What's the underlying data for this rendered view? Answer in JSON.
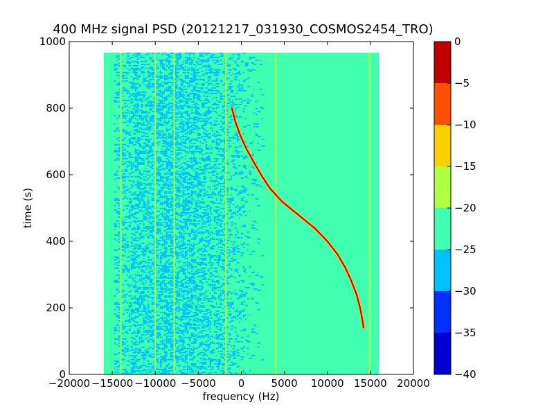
{
  "chart_data": {
    "type": "heatmap",
    "title": "400 MHz signal PSD (20121217_031930_COSMOS2454_TRO)",
    "xlabel": "frequency (Hz)",
    "ylabel": "time (s)",
    "xlim": [
      -20000,
      20000
    ],
    "ylim": [
      0,
      1000
    ],
    "xticks": [
      -20000,
      -15000,
      -10000,
      -5000,
      0,
      5000,
      10000,
      15000,
      20000
    ],
    "xtick_labels": [
      "−20000",
      "−15000",
      "−10000",
      "−5000",
      "0",
      "5000",
      "10000",
      "15000",
      "20000"
    ],
    "yticks": [
      0,
      200,
      400,
      600,
      800,
      1000
    ],
    "ytick_labels": [
      "0",
      "200",
      "400",
      "600",
      "800",
      "1000"
    ],
    "data_extent": {
      "freq_min": -16000,
      "freq_max": 16000,
      "time_min": 0,
      "time_max": 967
    },
    "background_level": -22.5,
    "noisy_band": {
      "freq_min": -12500,
      "freq_max": -3500,
      "level": -27.5
    },
    "colorbar": {
      "levels": [
        -40,
        -35,
        -30,
        -25,
        -20,
        -15,
        -10,
        -5,
        0
      ],
      "tick_labels": [
        "−40",
        "−35",
        "−30",
        "−25",
        "−20",
        "−15",
        "−10",
        "−5",
        "0"
      ],
      "colors": [
        "#0000cd",
        "#0030ff",
        "#00c0ff",
        "#40ffb0",
        "#b0ff40",
        "#ffd000",
        "#ff5000",
        "#c00000"
      ]
    },
    "vertical_lines": [
      {
        "freq": -14000,
        "level": -17.5
      },
      {
        "freq": -10000,
        "level": -17.5
      },
      {
        "freq": -7800,
        "level": -17.5
      },
      {
        "freq": -1800,
        "level": -17.5
      },
      {
        "freq": 4000,
        "level": -17.5
      },
      {
        "freq": 14900,
        "level": -17.5
      }
    ],
    "signal_track": {
      "name": "",
      "level": -2.5,
      "points": [
        {
          "t": 800,
          "f": -1100
        },
        {
          "t": 760,
          "f": -700
        },
        {
          "t": 720,
          "f": -150
        },
        {
          "t": 680,
          "f": 550
        },
        {
          "t": 640,
          "f": 1400
        },
        {
          "t": 600,
          "f": 2300
        },
        {
          "t": 560,
          "f": 3300
        },
        {
          "t": 520,
          "f": 4700
        },
        {
          "t": 480,
          "f": 6600
        },
        {
          "t": 440,
          "f": 8500
        },
        {
          "t": 400,
          "f": 10000
        },
        {
          "t": 360,
          "f": 11200
        },
        {
          "t": 320,
          "f": 12100
        },
        {
          "t": 280,
          "f": 12800
        },
        {
          "t": 240,
          "f": 13400
        },
        {
          "t": 200,
          "f": 13800
        },
        {
          "t": 160,
          "f": 14100
        },
        {
          "t": 140,
          "f": 14200
        }
      ]
    }
  }
}
